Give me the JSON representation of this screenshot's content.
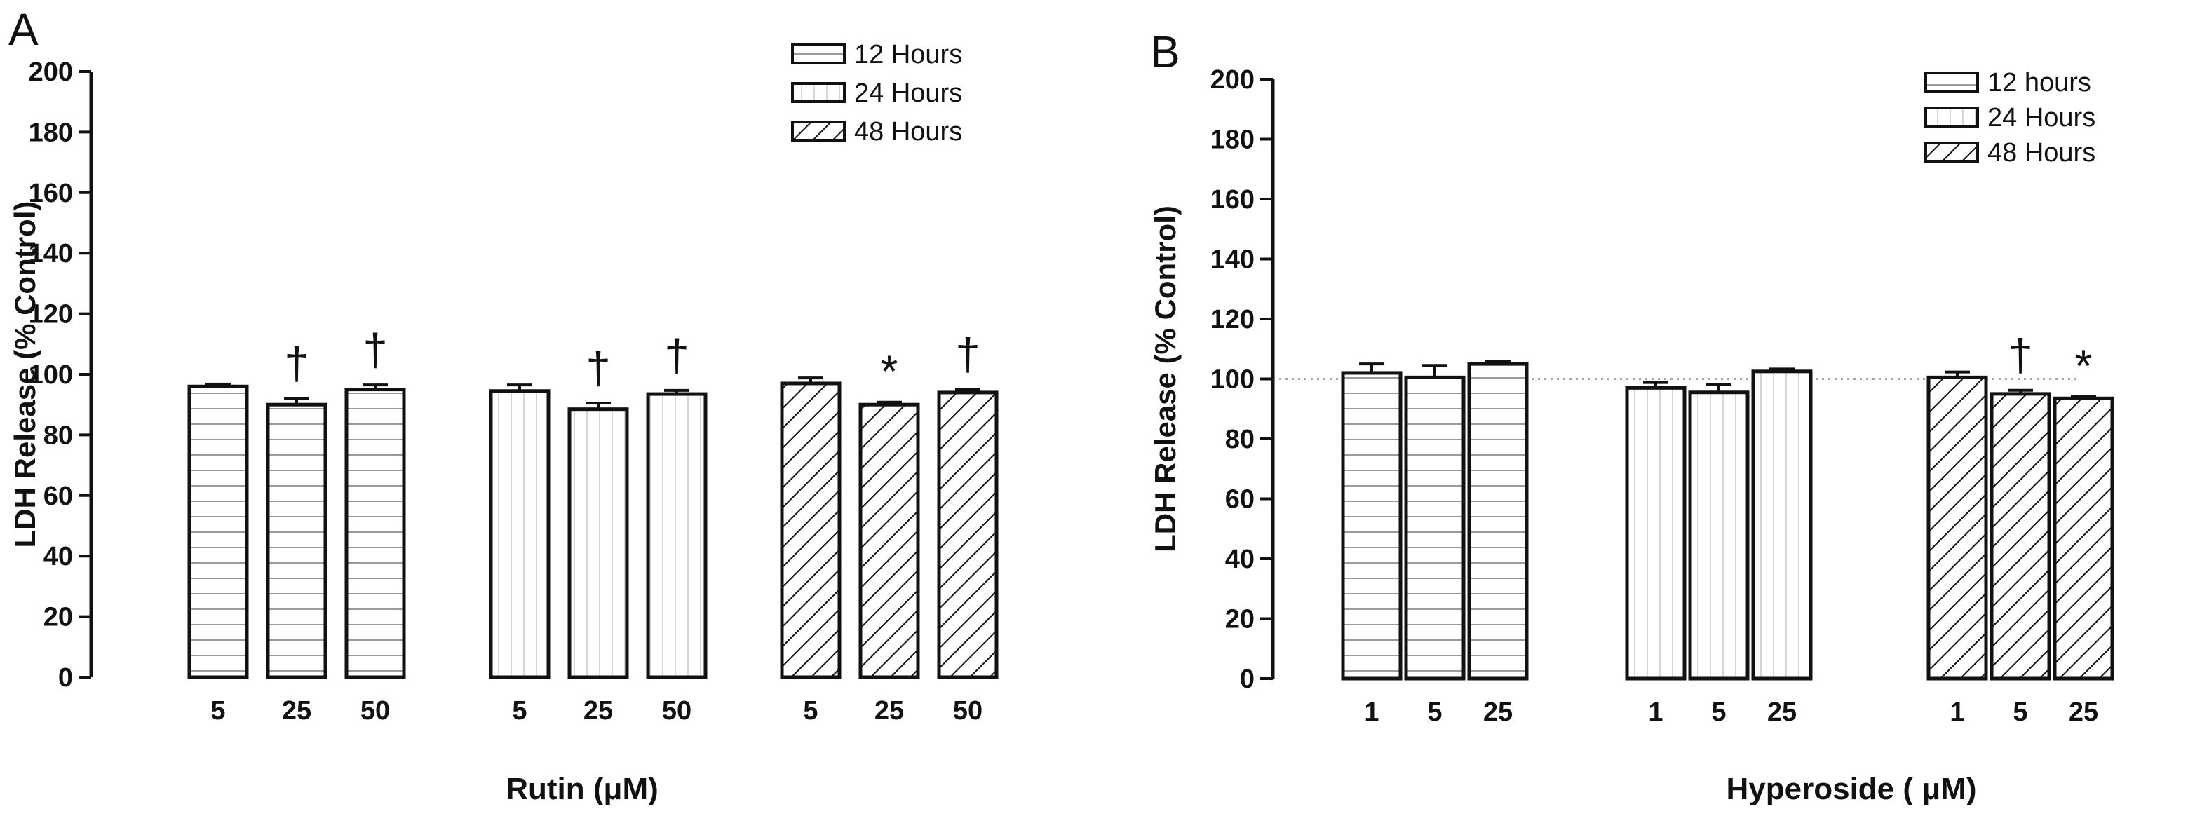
{
  "chart_data": [
    {
      "panel": "A",
      "type": "bar",
      "title": "",
      "xlabel": "Rutin (μM)",
      "ylabel": "LDH Release (% Control)",
      "ylim": [
        0,
        200
      ],
      "yticks": [
        0,
        20,
        40,
        60,
        80,
        100,
        120,
        140,
        160,
        180,
        200
      ],
      "reference_line": null,
      "legend": [
        "12 Hours",
        "24 Hours",
        "48 Hours"
      ],
      "groups": [
        {
          "name": "12 Hours",
          "pattern": "horizontal-lines",
          "categories": [
            "5",
            "25",
            "50"
          ],
          "values": [
            96,
            90,
            95
          ],
          "errors": [
            0.8,
            2,
            1.5
          ],
          "marks": [
            "",
            "†",
            "†"
          ]
        },
        {
          "name": "24 Hours",
          "pattern": "vertical-lines",
          "categories": [
            "5",
            "25",
            "50"
          ],
          "values": [
            94.5,
            88.5,
            93.5
          ],
          "errors": [
            2,
            2,
            1.2
          ],
          "marks": [
            "",
            "†",
            "†"
          ]
        },
        {
          "name": "48 Hours",
          "pattern": "diagonal-hatch",
          "categories": [
            "5",
            "25",
            "50"
          ],
          "values": [
            97,
            90,
            94
          ],
          "errors": [
            1.8,
            0.8,
            1
          ],
          "marks": [
            "",
            "*",
            "†"
          ]
        }
      ]
    },
    {
      "panel": "B",
      "type": "bar",
      "title": "",
      "xlabel": "Hyperoside ( μM)",
      "ylabel": "LDH Release (% Control)",
      "ylim": [
        0,
        200
      ],
      "yticks": [
        0,
        20,
        40,
        60,
        80,
        100,
        120,
        140,
        160,
        180,
        200
      ],
      "reference_line": 100,
      "legend": [
        "12 hours",
        "24 Hours",
        "48 Hours"
      ],
      "groups": [
        {
          "name": "12 hours",
          "pattern": "horizontal-lines",
          "categories": [
            "1",
            "5",
            "25"
          ],
          "values": [
            102,
            100.5,
            105
          ],
          "errors": [
            3,
            4,
            0.8
          ],
          "marks": [
            "",
            "",
            ""
          ]
        },
        {
          "name": "24 Hours",
          "pattern": "vertical-lines",
          "categories": [
            "1",
            "5",
            "25"
          ],
          "values": [
            97,
            95.5,
            102.5
          ],
          "errors": [
            1.8,
            2.5,
            0.8
          ],
          "marks": [
            "",
            "",
            ""
          ]
        },
        {
          "name": "48 Hours",
          "pattern": "diagonal-hatch",
          "categories": [
            "1",
            "5",
            "25"
          ],
          "values": [
            100.5,
            95,
            93.5
          ],
          "errors": [
            1.8,
            1.2,
            0.6
          ],
          "marks": [
            "",
            "†",
            "*"
          ]
        }
      ]
    }
  ]
}
